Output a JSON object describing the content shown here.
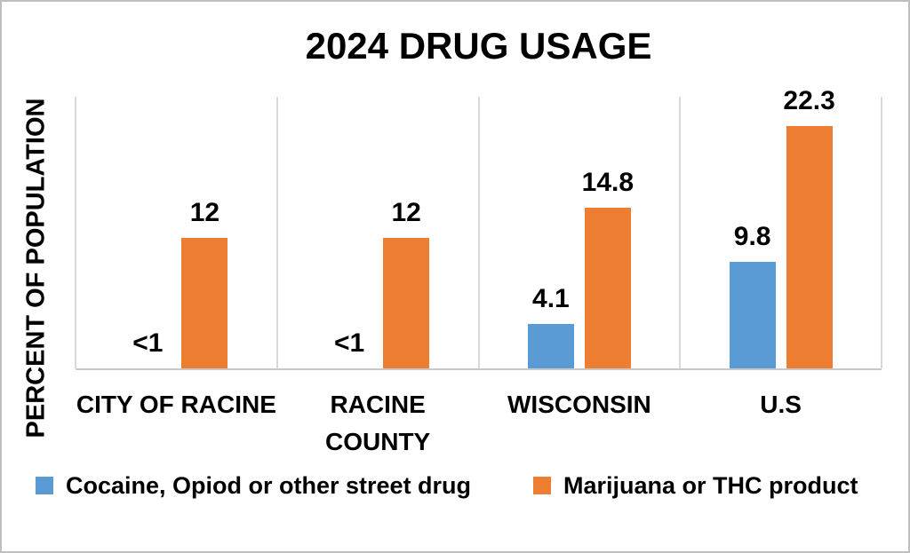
{
  "page": {
    "background": "#ffffff",
    "border_color": "#bfbfbf"
  },
  "chart_data": {
    "type": "bar",
    "title": "2024 DRUG USAGE",
    "ylabel": "PERCENT OF POPULATION",
    "xlabel": "",
    "ylim": [
      0,
      25
    ],
    "y_axis_tick_labels_visible": false,
    "grid": "vertical category-separator gridlines only",
    "gridline_color": "#d9d9d9",
    "axis_line_color": "#c9c9c9",
    "text_color": "#000000",
    "legend_position": "bottom",
    "categories": [
      "CITY OF RACINE",
      "RACINE COUNTY",
      "WISCONSIN",
      "U.S"
    ],
    "category_display_lines": [
      [
        "CITY OF RACINE"
      ],
      [
        "RACINE",
        "COUNTY"
      ],
      [
        "WISCONSIN"
      ],
      [
        "U.S"
      ]
    ],
    "series": [
      {
        "name": "Cocaine, Opiod or other street drug",
        "color": "#5b9bd5",
        "values": [
          0,
          0,
          4.1,
          9.8
        ],
        "value_labels": [
          "<1",
          "<1",
          "4.1",
          "9.8"
        ]
      },
      {
        "name": "Marijuana or THC product",
        "color": "#ed7d31",
        "values": [
          12,
          12,
          14.8,
          22.3
        ],
        "value_labels": [
          "12",
          "12",
          "14.8",
          "22.3"
        ]
      }
    ]
  }
}
